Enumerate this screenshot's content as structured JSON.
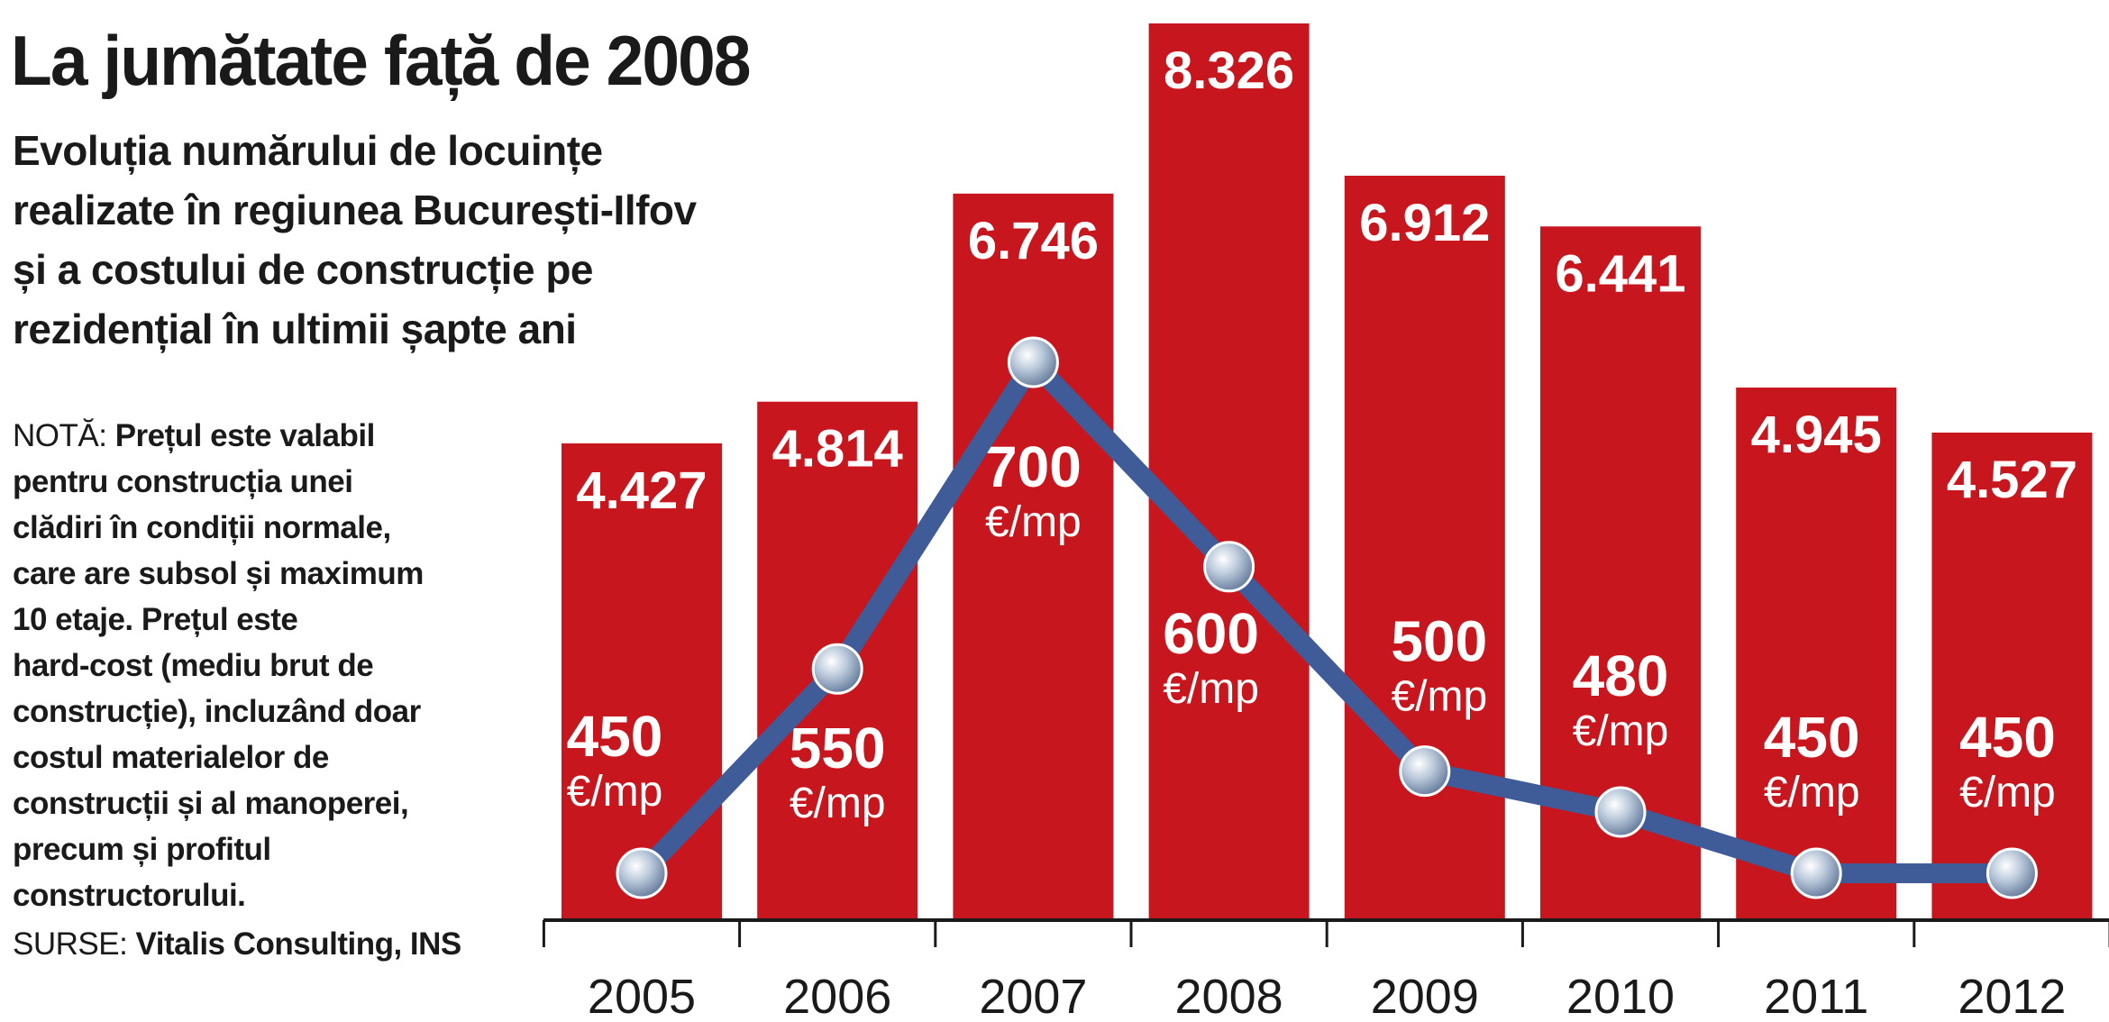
{
  "title": "La jumătate față de 2008",
  "subtitle_lines": [
    "Evoluția numărului de locuințe",
    "realizate în regiunea București-Ilfov",
    "și a costului de construcție pe",
    "rezidențial în ultimii șapte ani"
  ],
  "note": {
    "label": "NOTĂ:",
    "lines": [
      "Prețul este valabil",
      "pentru construcția unei",
      "clădiri în condiții normale,",
      "care are subsol și maximum",
      "10 etaje. Prețul este",
      "hard-cost (mediu brut de",
      "construcție), incluzând doar",
      "costul materialelor de",
      "construcții și al manoperei,",
      "precum și profitul",
      "constructorului."
    ]
  },
  "sources": {
    "label": "SURSE:",
    "text": "Vitalis Consulting, INS"
  },
  "colors": {
    "bar": "#c8161e",
    "line": "#3f5b98",
    "marker": "#9fb2c9",
    "axis": "#1a1a1a",
    "label_text": "#ffffff"
  },
  "chart_data": {
    "type": "bar+line",
    "categories": [
      "2005",
      "2006",
      "2007",
      "2008",
      "2009",
      "2010",
      "2011",
      "2012"
    ],
    "series": [
      {
        "type": "bar",
        "values": [
          4427,
          4814,
          6746,
          8326,
          6912,
          6441,
          4945,
          4527
        ],
        "labels": [
          "4.427",
          "4.814",
          "6.746",
          "8.326",
          "6.912",
          "6.441",
          "4.945",
          "4.527"
        ],
        "ylim": [
          0,
          8400
        ]
      },
      {
        "type": "line",
        "unit": "€/mp",
        "values": [
          450,
          550,
          700,
          600,
          500,
          480,
          450,
          450
        ],
        "labels": [
          "450",
          "550",
          "700",
          "600",
          "500",
          "480",
          "450",
          "450"
        ],
        "ylim": [
          450,
          700
        ]
      }
    ],
    "grid": false,
    "legend": "none"
  }
}
